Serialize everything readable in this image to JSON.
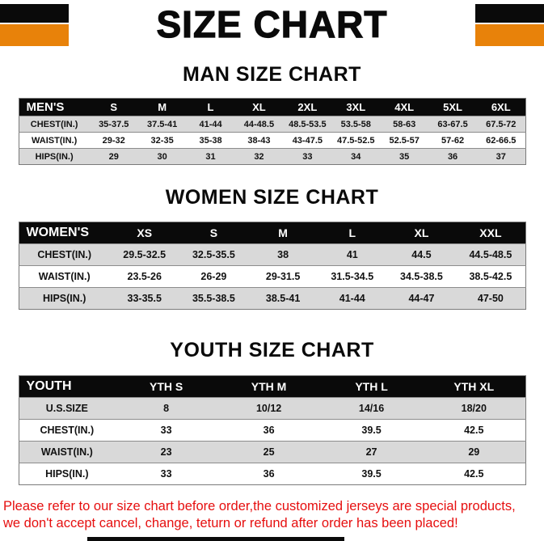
{
  "title": "SIZE CHART",
  "colors": {
    "accent_orange": "#e8820a",
    "header_black": "#0a0a0a",
    "row_gray": "#d9d9d9",
    "note_red": "#e60f0f"
  },
  "sections": [
    {
      "heading": "MAN SIZE CHART",
      "table": {
        "header": [
          "MEN'S",
          "S",
          "M",
          "L",
          "XL",
          "2XL",
          "3XL",
          "4XL",
          "5XL",
          "6XL"
        ],
        "rows": [
          [
            "CHEST(IN.)",
            "35-37.5",
            "37.5-41",
            "41-44",
            "44-48.5",
            "48.5-53.5",
            "53.5-58",
            "58-63",
            "63-67.5",
            "67.5-72"
          ],
          [
            "WAIST(IN.)",
            "29-32",
            "32-35",
            "35-38",
            "38-43",
            "43-47.5",
            "47.5-52.5",
            "52.5-57",
            "57-62",
            "62-66.5"
          ],
          [
            "HIPS(IN.)",
            "29",
            "30",
            "31",
            "32",
            "33",
            "34",
            "35",
            "36",
            "37"
          ]
        ]
      }
    },
    {
      "heading": "WOMEN SIZE CHART",
      "table": {
        "header": [
          "WOMEN'S",
          "XS",
          "S",
          "M",
          "L",
          "XL",
          "XXL"
        ],
        "rows": [
          [
            "CHEST(IN.)",
            "29.5-32.5",
            "32.5-35.5",
            "38",
            "41",
            "44.5",
            "44.5-48.5"
          ],
          [
            "WAIST(IN.)",
            "23.5-26",
            "26-29",
            "29-31.5",
            "31.5-34.5",
            "34.5-38.5",
            "38.5-42.5"
          ],
          [
            "HIPS(IN.)",
            "33-35.5",
            "35.5-38.5",
            "38.5-41",
            "41-44",
            "44-47",
            "47-50"
          ]
        ]
      }
    },
    {
      "heading": "YOUTH SIZE CHART",
      "table": {
        "header": [
          "YOUTH",
          "YTH S",
          "YTH M",
          "YTH L",
          "YTH XL"
        ],
        "rows": [
          [
            "U.S.SIZE",
            "8",
            "10/12",
            "14/16",
            "18/20"
          ],
          [
            "CHEST(IN.)",
            "33",
            "36",
            "39.5",
            "42.5"
          ],
          [
            "WAIST(IN.)",
            "23",
            "25",
            "27",
            "29"
          ],
          [
            "HIPS(IN.)",
            "33",
            "36",
            "39.5",
            "42.5"
          ]
        ]
      }
    }
  ],
  "footer": {
    "line1": "Please refer to our size chart before order,the customized jerseys are special products,",
    "line2": "we don't accept cancel, change, teturn or refund after order has been placed!"
  }
}
